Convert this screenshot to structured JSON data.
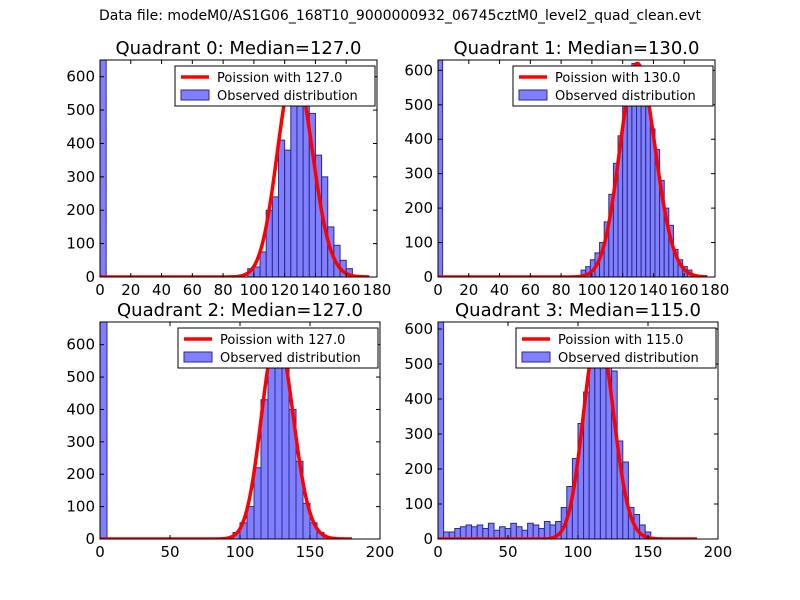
{
  "figure_title": "Data file: modeM0/AS1G06_168T10_9000000932_06745cztM0_level2_quad_clean.evt",
  "colors": {
    "bar_fill": "#8080ff",
    "bar_edge": "#2a2a8a",
    "curve": "#ff0000",
    "frame": "#000000"
  },
  "chart_data": [
    {
      "type": "bar",
      "title": "Quadrant 0: Median=127.0",
      "xlim": [
        0,
        180
      ],
      "ylim": [
        0,
        650
      ],
      "xticks": [
        0,
        20,
        40,
        60,
        80,
        100,
        120,
        140,
        160,
        180
      ],
      "yticks": [
        0,
        100,
        200,
        300,
        400,
        500,
        600
      ],
      "legend": [
        "Poission with 127.0",
        "Observed distribution"
      ],
      "legend_loc": "top-right",
      "bin_width": 4,
      "bars": [
        {
          "x": 0,
          "y": 650
        },
        {
          "x": 96,
          "y": 25
        },
        {
          "x": 100,
          "y": 30
        },
        {
          "x": 104,
          "y": 75
        },
        {
          "x": 108,
          "y": 200
        },
        {
          "x": 112,
          "y": 240
        },
        {
          "x": 116,
          "y": 410
        },
        {
          "x": 120,
          "y": 380
        },
        {
          "x": 124,
          "y": 570
        },
        {
          "x": 128,
          "y": 600
        },
        {
          "x": 132,
          "y": 590
        },
        {
          "x": 136,
          "y": 490
        },
        {
          "x": 140,
          "y": 365
        },
        {
          "x": 144,
          "y": 300
        },
        {
          "x": 148,
          "y": 150
        },
        {
          "x": 152,
          "y": 95
        },
        {
          "x": 156,
          "y": 50
        },
        {
          "x": 160,
          "y": 25
        }
      ],
      "poisson": {
        "mu": 127.0,
        "peak": 625,
        "range": [
          0,
          175
        ]
      }
    },
    {
      "type": "bar",
      "title": "Quadrant 1: Median=130.0",
      "xlim": [
        0,
        180
      ],
      "ylim": [
        0,
        630
      ],
      "xticks": [
        0,
        20,
        40,
        60,
        80,
        100,
        120,
        140,
        160,
        180
      ],
      "yticks": [
        0,
        100,
        200,
        300,
        400,
        500,
        600
      ],
      "legend": [
        "Poission with 130.0",
        "Observed distribution"
      ],
      "legend_loc": "top-right",
      "bin_width": 3,
      "bars": [
        {
          "x": 0,
          "y": 630
        },
        {
          "x": 93,
          "y": 20
        },
        {
          "x": 96,
          "y": 30
        },
        {
          "x": 99,
          "y": 50
        },
        {
          "x": 102,
          "y": 70
        },
        {
          "x": 105,
          "y": 100
        },
        {
          "x": 108,
          "y": 160
        },
        {
          "x": 111,
          "y": 240
        },
        {
          "x": 114,
          "y": 330
        },
        {
          "x": 117,
          "y": 410
        },
        {
          "x": 120,
          "y": 500
        },
        {
          "x": 123,
          "y": 580
        },
        {
          "x": 126,
          "y": 620
        },
        {
          "x": 129,
          "y": 580
        },
        {
          "x": 132,
          "y": 600
        },
        {
          "x": 135,
          "y": 600
        },
        {
          "x": 138,
          "y": 430
        },
        {
          "x": 141,
          "y": 370
        },
        {
          "x": 144,
          "y": 280
        },
        {
          "x": 147,
          "y": 200
        },
        {
          "x": 150,
          "y": 150
        },
        {
          "x": 153,
          "y": 80
        },
        {
          "x": 156,
          "y": 50
        },
        {
          "x": 159,
          "y": 30
        },
        {
          "x": 162,
          "y": 20
        }
      ],
      "poisson": {
        "mu": 130.0,
        "peak": 620,
        "range": [
          0,
          175
        ]
      }
    },
    {
      "type": "bar",
      "title": "Quadrant 2: Median=127.0",
      "xlim": [
        0,
        200
      ],
      "ylim": [
        0,
        670
      ],
      "xticks": [
        0,
        50,
        100,
        150,
        200
      ],
      "yticks": [
        0,
        100,
        200,
        300,
        400,
        500,
        600
      ],
      "legend": [
        "Poission with 127.0",
        "Observed distribution"
      ],
      "legend_loc": "top-right",
      "bin_width": 5,
      "bars": [
        {
          "x": 0,
          "y": 670
        },
        {
          "x": 95,
          "y": 20
        },
        {
          "x": 100,
          "y": 50
        },
        {
          "x": 105,
          "y": 100
        },
        {
          "x": 110,
          "y": 220
        },
        {
          "x": 115,
          "y": 430
        },
        {
          "x": 120,
          "y": 630
        },
        {
          "x": 125,
          "y": 600
        },
        {
          "x": 130,
          "y": 625
        },
        {
          "x": 135,
          "y": 400
        },
        {
          "x": 140,
          "y": 240
        },
        {
          "x": 145,
          "y": 110
        },
        {
          "x": 150,
          "y": 50
        },
        {
          "x": 155,
          "y": 20
        }
      ],
      "poisson": {
        "mu": 127.0,
        "peak": 630,
        "range": [
          0,
          180
        ]
      }
    },
    {
      "type": "bar",
      "title": "Quadrant 3: Median=115.0",
      "xlim": [
        0,
        200
      ],
      "ylim": [
        0,
        620
      ],
      "xticks": [
        0,
        50,
        100,
        150,
        200
      ],
      "yticks": [
        0,
        100,
        200,
        300,
        400,
        500,
        600
      ],
      "legend": [
        "Poission with 115.0",
        "Observed distribution"
      ],
      "legend_loc": "top-right",
      "bin_width": 4,
      "bars": [
        {
          "x": 0,
          "y": 620
        },
        {
          "x": 4,
          "y": 20
        },
        {
          "x": 8,
          "y": 20
        },
        {
          "x": 12,
          "y": 30
        },
        {
          "x": 16,
          "y": 35
        },
        {
          "x": 20,
          "y": 40
        },
        {
          "x": 24,
          "y": 35
        },
        {
          "x": 28,
          "y": 40
        },
        {
          "x": 32,
          "y": 30
        },
        {
          "x": 36,
          "y": 45
        },
        {
          "x": 40,
          "y": 25
        },
        {
          "x": 44,
          "y": 35
        },
        {
          "x": 48,
          "y": 30
        },
        {
          "x": 52,
          "y": 45
        },
        {
          "x": 56,
          "y": 35
        },
        {
          "x": 60,
          "y": 25
        },
        {
          "x": 64,
          "y": 45
        },
        {
          "x": 68,
          "y": 40
        },
        {
          "x": 72,
          "y": 30
        },
        {
          "x": 76,
          "y": 50
        },
        {
          "x": 80,
          "y": 40
        },
        {
          "x": 84,
          "y": 50
        },
        {
          "x": 88,
          "y": 90
        },
        {
          "x": 92,
          "y": 150
        },
        {
          "x": 96,
          "y": 230
        },
        {
          "x": 100,
          "y": 330
        },
        {
          "x": 104,
          "y": 420
        },
        {
          "x": 108,
          "y": 500
        },
        {
          "x": 112,
          "y": 580
        },
        {
          "x": 116,
          "y": 560
        },
        {
          "x": 120,
          "y": 510
        },
        {
          "x": 124,
          "y": 480
        },
        {
          "x": 128,
          "y": 280
        },
        {
          "x": 132,
          "y": 220
        },
        {
          "x": 136,
          "y": 90
        },
        {
          "x": 140,
          "y": 70
        },
        {
          "x": 144,
          "y": 40
        },
        {
          "x": 148,
          "y": 20
        }
      ],
      "poisson": {
        "mu": 115.0,
        "peak": 590,
        "range": [
          0,
          185
        ]
      }
    }
  ]
}
